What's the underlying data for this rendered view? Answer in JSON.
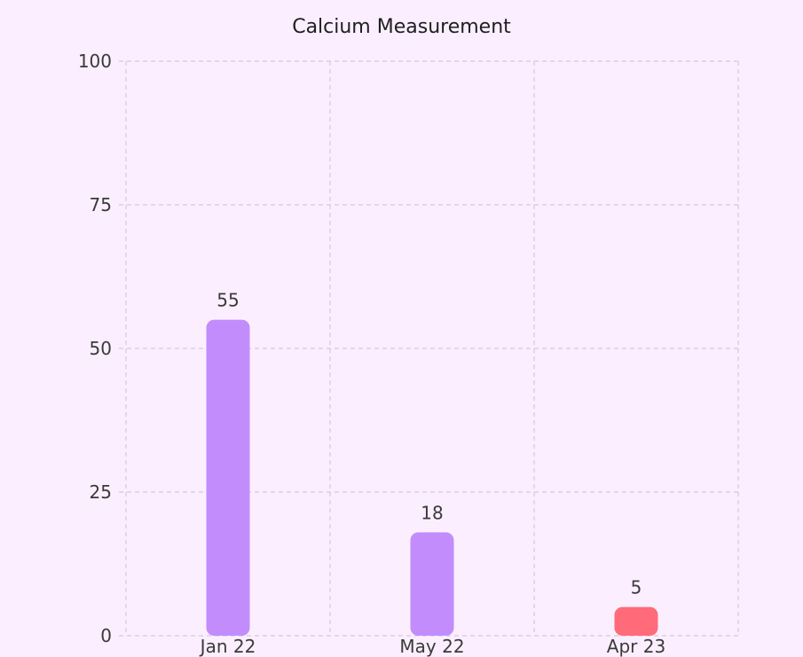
{
  "chart_data": {
    "type": "bar",
    "title": "Calcium Measurement",
    "categories": [
      "Jan 22",
      "May 22",
      "Apr 23"
    ],
    "values": [
      55,
      18,
      5
    ],
    "data_labels": [
      "55",
      "18",
      "5"
    ],
    "ylim": [
      0,
      100
    ],
    "yticks": [
      0,
      25,
      50,
      75,
      100
    ],
    "ytick_labels": [
      "0",
      "25",
      "50",
      "75",
      "100"
    ],
    "grid": true,
    "colors": {
      "bars": [
        "#c28cfc",
        "#c28cfc",
        "#ff6b78"
      ],
      "grid": "#d9c5dc",
      "background": "#fbefff"
    }
  }
}
